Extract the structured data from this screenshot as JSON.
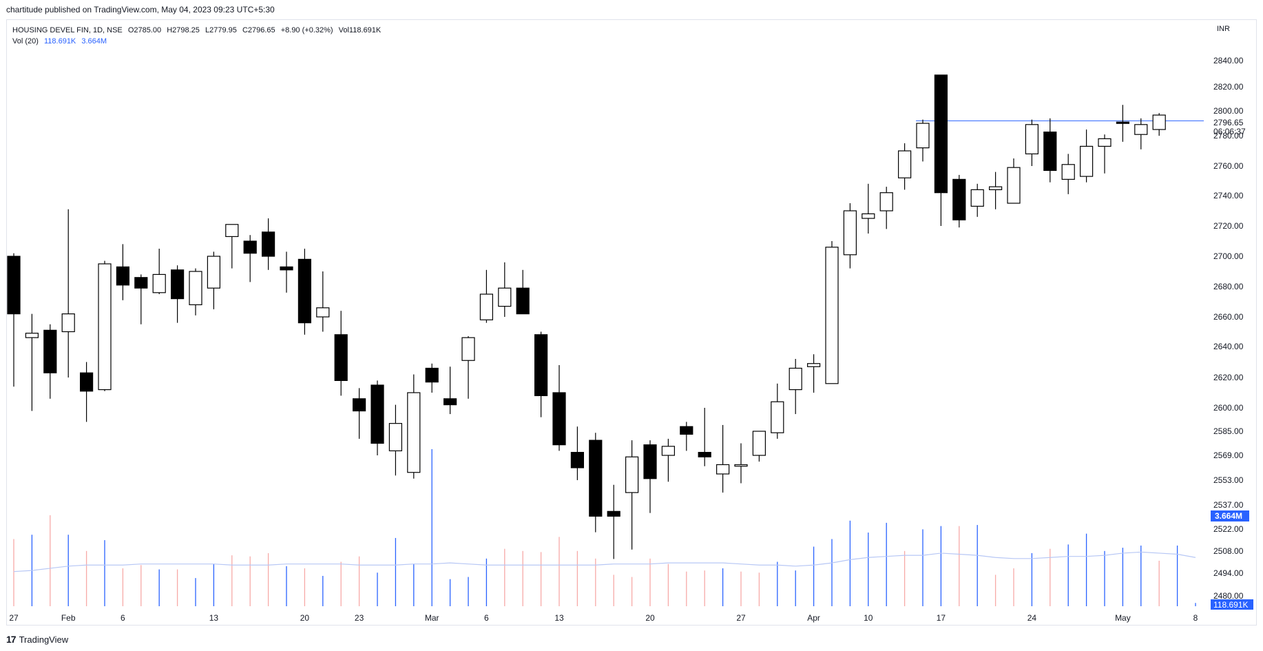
{
  "publisher_line": "chartitude published on TradingView.com, May 04, 2023 09:23 UTC+5:30",
  "legend": {
    "symbol": "HOUSING DEVEL FIN, 1D, NSE",
    "open": "O2785.00",
    "high": "H2798.25",
    "low": "L2779.95",
    "close": "C2796.65",
    "change": "+8.90 (+0.32%)",
    "volume": "Vol118.691K",
    "vol_study": "Vol (20)",
    "vol_value": "118.691K",
    "vol_ma": "3.664M"
  },
  "currency": "INR",
  "footer": {
    "logo": "17",
    "brand": "TradingView"
  },
  "colors": {
    "up_volume": "#2962ff",
    "down_volume": "#f7a9a7",
    "vol_ma": "#b7c7f5",
    "resistance": "#2962ff"
  },
  "chart_data": {
    "type": "candlestick",
    "y_ticks": [
      2480,
      2494,
      2508,
      2522,
      2537,
      2553,
      2569,
      2585,
      2600,
      2620,
      2640,
      2660,
      2680,
      2700,
      2720,
      2740,
      2760,
      2780,
      2800,
      2820,
      2840
    ],
    "y_tick_labels": [
      "2480.00",
      "2494.00",
      "2508.00",
      "2522.00",
      "2537.00",
      "2553.00",
      "2569.00",
      "2585.00",
      "2600.00",
      "2620.00",
      "2640.00",
      "2660.00",
      "2680.00",
      "2700.00",
      "2720.00",
      "2740.00",
      "2760.00",
      "2780.00",
      "2800.00",
      "2820.00",
      "2840.00"
    ],
    "x_ticks": [
      {
        "label": "27",
        "index": 0
      },
      {
        "label": "Feb",
        "index": 3
      },
      {
        "label": "6",
        "index": 6
      },
      {
        "label": "13",
        "index": 11
      },
      {
        "label": "20",
        "index": 16
      },
      {
        "label": "23",
        "index": 19
      },
      {
        "label": "Mar",
        "index": 23
      },
      {
        "label": "6",
        "index": 26
      },
      {
        "label": "13",
        "index": 30
      },
      {
        "label": "20",
        "index": 35
      },
      {
        "label": "27",
        "index": 40
      },
      {
        "label": "Apr",
        "index": 44
      },
      {
        "label": "10",
        "index": 47
      },
      {
        "label": "17",
        "index": 51
      },
      {
        "label": "24",
        "index": 56
      },
      {
        "label": "May",
        "index": 61
      },
      {
        "label": "8",
        "index": 65
      }
    ],
    "last_price": "2796.65",
    "countdown": "06:06:37",
    "vol_ma_label": "3.664M",
    "vol_label": "118.691K",
    "resistance_level": 2792,
    "candles": [
      {
        "o": 2700,
        "h": 2702,
        "l": 2614,
        "c": 2662
      },
      {
        "o": 2646,
        "h": 2662,
        "l": 2598,
        "c": 2649
      },
      {
        "o": 2651,
        "h": 2655,
        "l": 2606,
        "c": 2623
      },
      {
        "o": 2650,
        "h": 2731,
        "l": 2620,
        "c": 2662
      },
      {
        "o": 2623,
        "h": 2630,
        "l": 2591,
        "c": 2611
      },
      {
        "o": 2612,
        "h": 2697,
        "l": 2611,
        "c": 2695
      },
      {
        "o": 2693,
        "h": 2708,
        "l": 2671,
        "c": 2681
      },
      {
        "o": 2686,
        "h": 2688,
        "l": 2655,
        "c": 2679
      },
      {
        "o": 2676,
        "h": 2705,
        "l": 2675,
        "c": 2688
      },
      {
        "o": 2691,
        "h": 2694,
        "l": 2656,
        "c": 2672
      },
      {
        "o": 2668,
        "h": 2692,
        "l": 2661,
        "c": 2690
      },
      {
        "o": 2679,
        "h": 2703,
        "l": 2665,
        "c": 2700
      },
      {
        "o": 2713,
        "h": 2719,
        "l": 2692,
        "c": 2721
      },
      {
        "o": 2710,
        "h": 2714,
        "l": 2683,
        "c": 2702
      },
      {
        "o": 2716,
        "h": 2725,
        "l": 2691,
        "c": 2700
      },
      {
        "o": 2693,
        "h": 2703,
        "l": 2676,
        "c": 2691
      },
      {
        "o": 2698,
        "h": 2705,
        "l": 2648,
        "c": 2656
      },
      {
        "o": 2660,
        "h": 2690,
        "l": 2650,
        "c": 2666
      },
      {
        "o": 2648,
        "h": 2664,
        "l": 2608,
        "c": 2618
      },
      {
        "o": 2606,
        "h": 2613,
        "l": 2580,
        "c": 2598
      },
      {
        "o": 2615,
        "h": 2618,
        "l": 2569,
        "c": 2577
      },
      {
        "o": 2572,
        "h": 2602,
        "l": 2556,
        "c": 2590
      },
      {
        "o": 2558,
        "h": 2622,
        "l": 2554,
        "c": 2610
      },
      {
        "o": 2626,
        "h": 2629,
        "l": 2610,
        "c": 2617
      },
      {
        "o": 2606,
        "h": 2627,
        "l": 2596,
        "c": 2602
      },
      {
        "o": 2631,
        "h": 2647,
        "l": 2606,
        "c": 2646
      },
      {
        "o": 2658,
        "h": 2691,
        "l": 2656,
        "c": 2675
      },
      {
        "o": 2667,
        "h": 2696,
        "l": 2660,
        "c": 2679
      },
      {
        "o": 2679,
        "h": 2691,
        "l": 2662,
        "c": 2662
      },
      {
        "o": 2648,
        "h": 2650,
        "l": 2594,
        "c": 2608
      },
      {
        "o": 2610,
        "h": 2628,
        "l": 2572,
        "c": 2576
      },
      {
        "o": 2571,
        "h": 2588,
        "l": 2553,
        "c": 2561
      },
      {
        "o": 2579,
        "h": 2584,
        "l": 2520,
        "c": 2530
      },
      {
        "o": 2533,
        "h": 2550,
        "l": 2503,
        "c": 2530
      },
      {
        "o": 2545,
        "h": 2579,
        "l": 2509,
        "c": 2568
      },
      {
        "o": 2576,
        "h": 2579,
        "l": 2532,
        "c": 2554
      },
      {
        "o": 2569,
        "h": 2580,
        "l": 2552,
        "c": 2575
      },
      {
        "o": 2588,
        "h": 2591,
        "l": 2572,
        "c": 2583
      },
      {
        "o": 2571,
        "h": 2600,
        "l": 2562,
        "c": 2568
      },
      {
        "o": 2557,
        "h": 2589,
        "l": 2545,
        "c": 2563
      },
      {
        "o": 2562,
        "h": 2577,
        "l": 2551,
        "c": 2563
      },
      {
        "o": 2569,
        "h": 2583,
        "l": 2565,
        "c": 2585
      },
      {
        "o": 2584,
        "h": 2616,
        "l": 2580,
        "c": 2604
      },
      {
        "o": 2612,
        "h": 2632,
        "l": 2596,
        "c": 2626
      },
      {
        "o": 2627,
        "h": 2635,
        "l": 2610,
        "c": 2629
      },
      {
        "o": 2616,
        "h": 2710,
        "l": 2616,
        "c": 2706
      },
      {
        "o": 2701,
        "h": 2735,
        "l": 2692,
        "c": 2730
      },
      {
        "o": 2725,
        "h": 2748,
        "l": 2715,
        "c": 2728
      },
      {
        "o": 2730,
        "h": 2746,
        "l": 2718,
        "c": 2742
      },
      {
        "o": 2752,
        "h": 2775,
        "l": 2744,
        "c": 2770
      },
      {
        "o": 2772,
        "h": 2793,
        "l": 2763,
        "c": 2790
      },
      {
        "o": 2829,
        "h": 2829,
        "l": 2720,
        "c": 2742
      },
      {
        "o": 2751,
        "h": 2754,
        "l": 2719,
        "c": 2724
      },
      {
        "o": 2733,
        "h": 2748,
        "l": 2726,
        "c": 2744
      },
      {
        "o": 2744,
        "h": 2756,
        "l": 2731,
        "c": 2746
      },
      {
        "o": 2735,
        "h": 2765,
        "l": 2735,
        "c": 2759
      },
      {
        "o": 2768,
        "h": 2793,
        "l": 2760,
        "c": 2789
      },
      {
        "o": 2783,
        "h": 2794,
        "l": 2749,
        "c": 2757
      },
      {
        "o": 2751,
        "h": 2768,
        "l": 2741,
        "c": 2761
      },
      {
        "o": 2753,
        "h": 2785,
        "l": 2749,
        "c": 2773
      },
      {
        "o": 2773,
        "h": 2781,
        "l": 2755,
        "c": 2778
      },
      {
        "o": 2791,
        "h": 2805,
        "l": 2776,
        "c": 2790
      },
      {
        "o": 2781,
        "h": 2794,
        "l": 2771,
        "c": 2789
      },
      {
        "o": 2785,
        "h": 2798.25,
        "l": 2779.95,
        "c": 2796.65
      }
    ],
    "volume": [
      0.62,
      0.66,
      0.84,
      0.66,
      0.51,
      0.61,
      0.35,
      0.38,
      0.34,
      0.34,
      0.26,
      0.39,
      0.47,
      0.46,
      0.49,
      0.37,
      0.35,
      0.28,
      0.41,
      0.46,
      0.31,
      0.63,
      0.39,
      1.45,
      0.25,
      0.27,
      0.44,
      0.53,
      0.51,
      0.5,
      0.64,
      0.51,
      0.44,
      0.29,
      0.27,
      0.44,
      0.39,
      0.32,
      0.33,
      0.35,
      0.32,
      0.31,
      0.41,
      0.33,
      0.55,
      0.62,
      0.79,
      0.68,
      0.77,
      0.51,
      0.71,
      0.74,
      0.74,
      0.75,
      0.29,
      0.35,
      0.49,
      0.53,
      0.57,
      0.67,
      0.51,
      0.54,
      0.56,
      0.42,
      0.56,
      0.03
    ],
    "volume_up": [
      false,
      true,
      false,
      true,
      false,
      true,
      false,
      false,
      true,
      false,
      true,
      true,
      false,
      false,
      false,
      true,
      false,
      true,
      false,
      false,
      true,
      true,
      true,
      true,
      true,
      true,
      true,
      false,
      false,
      false,
      false,
      false,
      false,
      false,
      false,
      false,
      false,
      false,
      false,
      true,
      false,
      false,
      true,
      true,
      true,
      true,
      true,
      true,
      true,
      false,
      true,
      true,
      false,
      true,
      false,
      false,
      true,
      false,
      true,
      true,
      true,
      true,
      true,
      false,
      true,
      true
    ],
    "vol_ma": [
      0.32,
      0.33,
      0.35,
      0.37,
      0.38,
      0.38,
      0.38,
      0.39,
      0.39,
      0.39,
      0.39,
      0.39,
      0.38,
      0.38,
      0.38,
      0.39,
      0.39,
      0.39,
      0.39,
      0.38,
      0.38,
      0.38,
      0.39,
      0.39,
      0.4,
      0.39,
      0.38,
      0.38,
      0.38,
      0.38,
      0.38,
      0.38,
      0.38,
      0.39,
      0.39,
      0.39,
      0.4,
      0.4,
      0.4,
      0.4,
      0.39,
      0.38,
      0.38,
      0.37,
      0.38,
      0.4,
      0.43,
      0.45,
      0.46,
      0.47,
      0.47,
      0.49,
      0.48,
      0.47,
      0.45,
      0.44,
      0.44,
      0.45,
      0.46,
      0.46,
      0.47,
      0.49,
      0.5,
      0.49,
      0.48,
      0.45
    ]
  }
}
